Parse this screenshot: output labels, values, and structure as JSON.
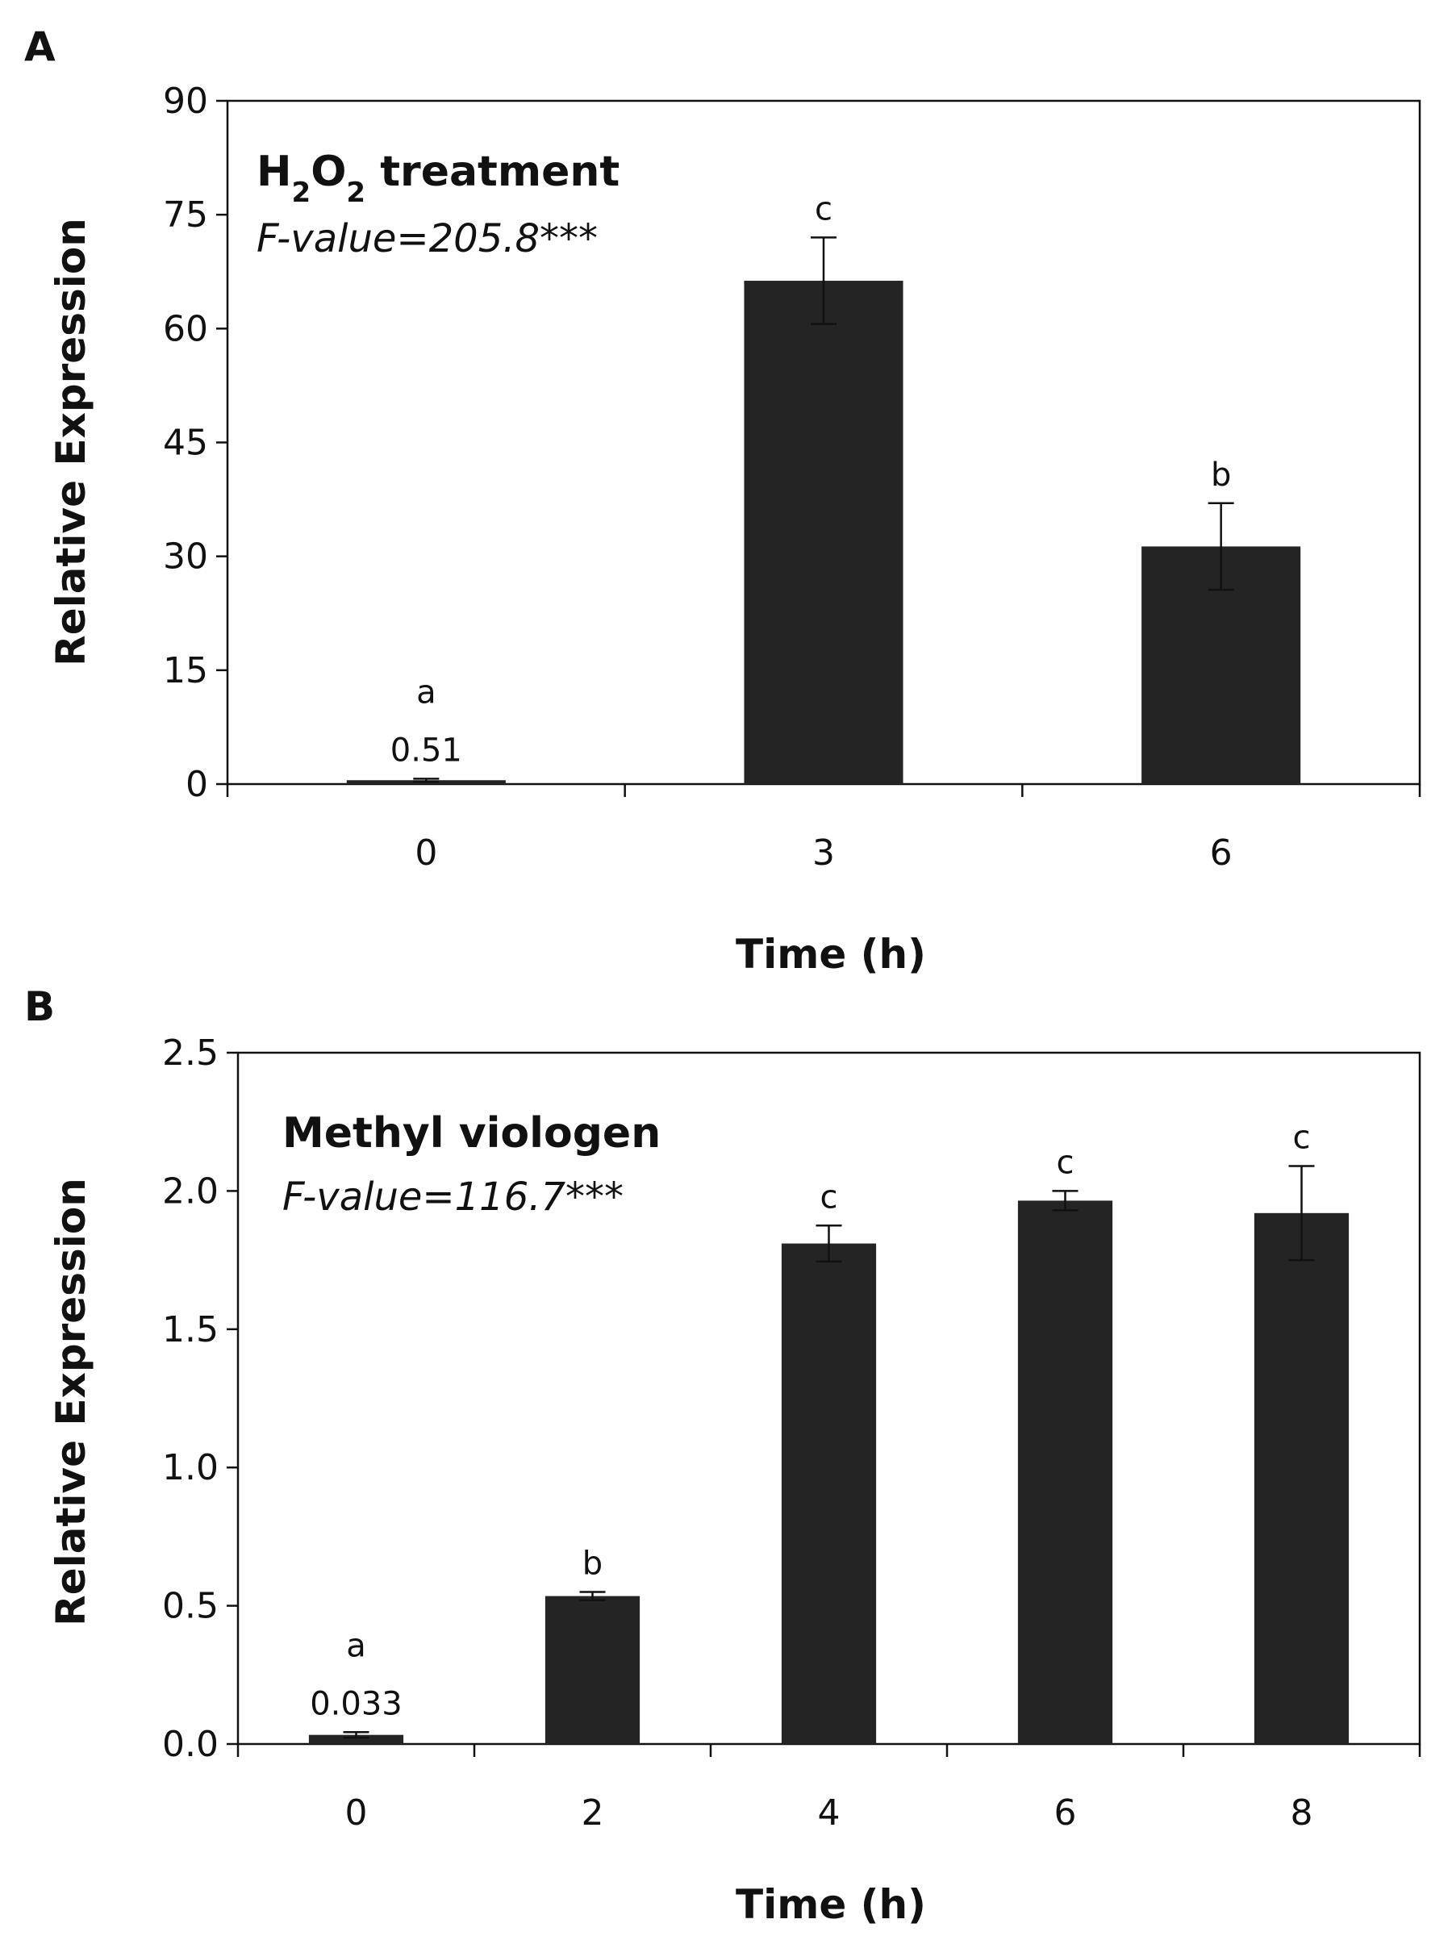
{
  "colors": {
    "bar": "#242424",
    "axis": "#111111",
    "background": "#ffffff"
  },
  "chart_data": [
    {
      "type": "bar",
      "panel": "A",
      "title_parts": [
        "H",
        "2",
        "O",
        "2",
        " treatment"
      ],
      "subtitle": "F-value=205.8***",
      "xlabel": "Time (h)",
      "ylabel": "Relative Expression",
      "categories": [
        "0",
        "3",
        "6"
      ],
      "values": [
        0.51,
        66.3,
        31.3
      ],
      "errors": [
        0.2,
        5.7,
        5.7
      ],
      "letters": [
        "a",
        "c",
        "b"
      ],
      "value_labels": [
        "0.51",
        "",
        ""
      ],
      "ylim": [
        0,
        90
      ],
      "yticks": [
        "0",
        "15",
        "30",
        "45",
        "60",
        "75",
        "90"
      ]
    },
    {
      "type": "bar",
      "panel": "B",
      "title": "Methyl viologen",
      "subtitle": "F-value=116.7***",
      "xlabel": "Time (h)",
      "ylabel": "Relative Expression",
      "categories": [
        "0",
        "2",
        "4",
        "6",
        "8"
      ],
      "values": [
        0.033,
        0.535,
        1.81,
        1.965,
        1.92
      ],
      "errors": [
        0.01,
        0.015,
        0.065,
        0.035,
        0.17
      ],
      "letters": [
        "a",
        "b",
        "c",
        "c",
        "c"
      ],
      "value_labels": [
        "0.033",
        "",
        "",
        "",
        ""
      ],
      "ylim": [
        0,
        2.5
      ],
      "yticks": [
        "0.0",
        "0.5",
        "1.0",
        "1.5",
        "2.0",
        "2.5"
      ]
    }
  ]
}
